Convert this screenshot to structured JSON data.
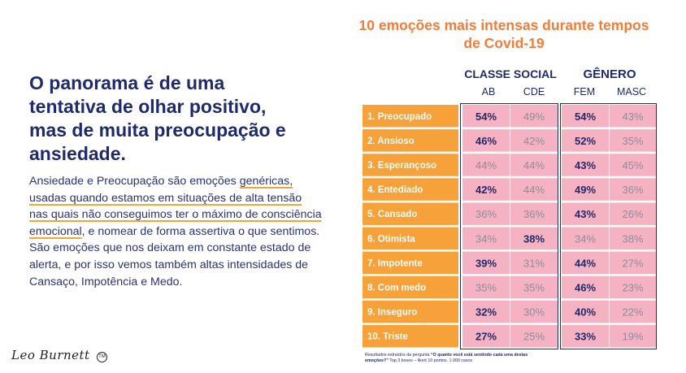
{
  "headline": "O panorama é de uma tentativa de olhar positivo, mas de muita preocupação e ansiedade.",
  "body": {
    "part1": "Ansiedade e Preocupação são emoções ",
    "highlight": "genéricas, usadas quando estamos em situações de alta tensão nas quais não conseguimos ter o máximo de consciência emocional",
    "part2": ", e nomear de forma assertiva o que sentimos. São emoções que nos deixam em constante estado de alerta, e por isso vemos também altas intensidades de Cansaço, Impotência e Medo."
  },
  "logo": {
    "text": "Leo Burnett",
    "tm": "TM"
  },
  "footnote": {
    "prefix": "Resultados extraídos da pergunta ",
    "question": "“O quanto você está sentindo cada uma destas emoções?”",
    "suffix": " Top 3 boxes – likert 10 pontos. 1.000 casos"
  },
  "colors": {
    "navy": "#1f2a6b",
    "orange_title": "#f07d3a",
    "label_bg": "#f6a13a",
    "cell_bg": "#f5b2c2",
    "muted_text": "#8d8d9a"
  },
  "chart_data": {
    "type": "table",
    "title": "10 emoções mais intensas durante tempos de Covid-19",
    "groups": [
      {
        "name": "CLASSE SOCIAL",
        "columns": [
          "AB",
          "CDE"
        ]
      },
      {
        "name": "GÊNERO",
        "columns": [
          "FEM",
          "MASC"
        ]
      }
    ],
    "rows": [
      {
        "label": "1. Preocupado",
        "values": [
          54,
          49,
          54,
          43
        ],
        "bold": [
          true,
          false,
          true,
          false
        ]
      },
      {
        "label": "2. Ansioso",
        "values": [
          46,
          42,
          52,
          35
        ],
        "bold": [
          true,
          false,
          true,
          false
        ]
      },
      {
        "label": "3. Esperançoso",
        "values": [
          44,
          44,
          43,
          45
        ],
        "bold": [
          false,
          false,
          true,
          false
        ]
      },
      {
        "label": "4. Entediado",
        "values": [
          42,
          44,
          49,
          36
        ],
        "bold": [
          true,
          false,
          true,
          false
        ]
      },
      {
        "label": "5. Cansado",
        "values": [
          36,
          36,
          43,
          26
        ],
        "bold": [
          false,
          false,
          true,
          false
        ]
      },
      {
        "label": "6. Otimista",
        "values": [
          34,
          38,
          34,
          38
        ],
        "bold": [
          false,
          true,
          false,
          false
        ]
      },
      {
        "label": "7. Impotente",
        "values": [
          39,
          31,
          44,
          27
        ],
        "bold": [
          true,
          false,
          true,
          false
        ]
      },
      {
        "label": "8. Com medo",
        "values": [
          35,
          35,
          46,
          23
        ],
        "bold": [
          false,
          false,
          true,
          false
        ]
      },
      {
        "label": "9. Inseguro",
        "values": [
          32,
          30,
          40,
          22
        ],
        "bold": [
          true,
          false,
          true,
          false
        ]
      },
      {
        "label": "10. Triste",
        "values": [
          27,
          25,
          33,
          19
        ],
        "bold": [
          true,
          false,
          true,
          false
        ]
      }
    ],
    "value_suffix": "%"
  }
}
